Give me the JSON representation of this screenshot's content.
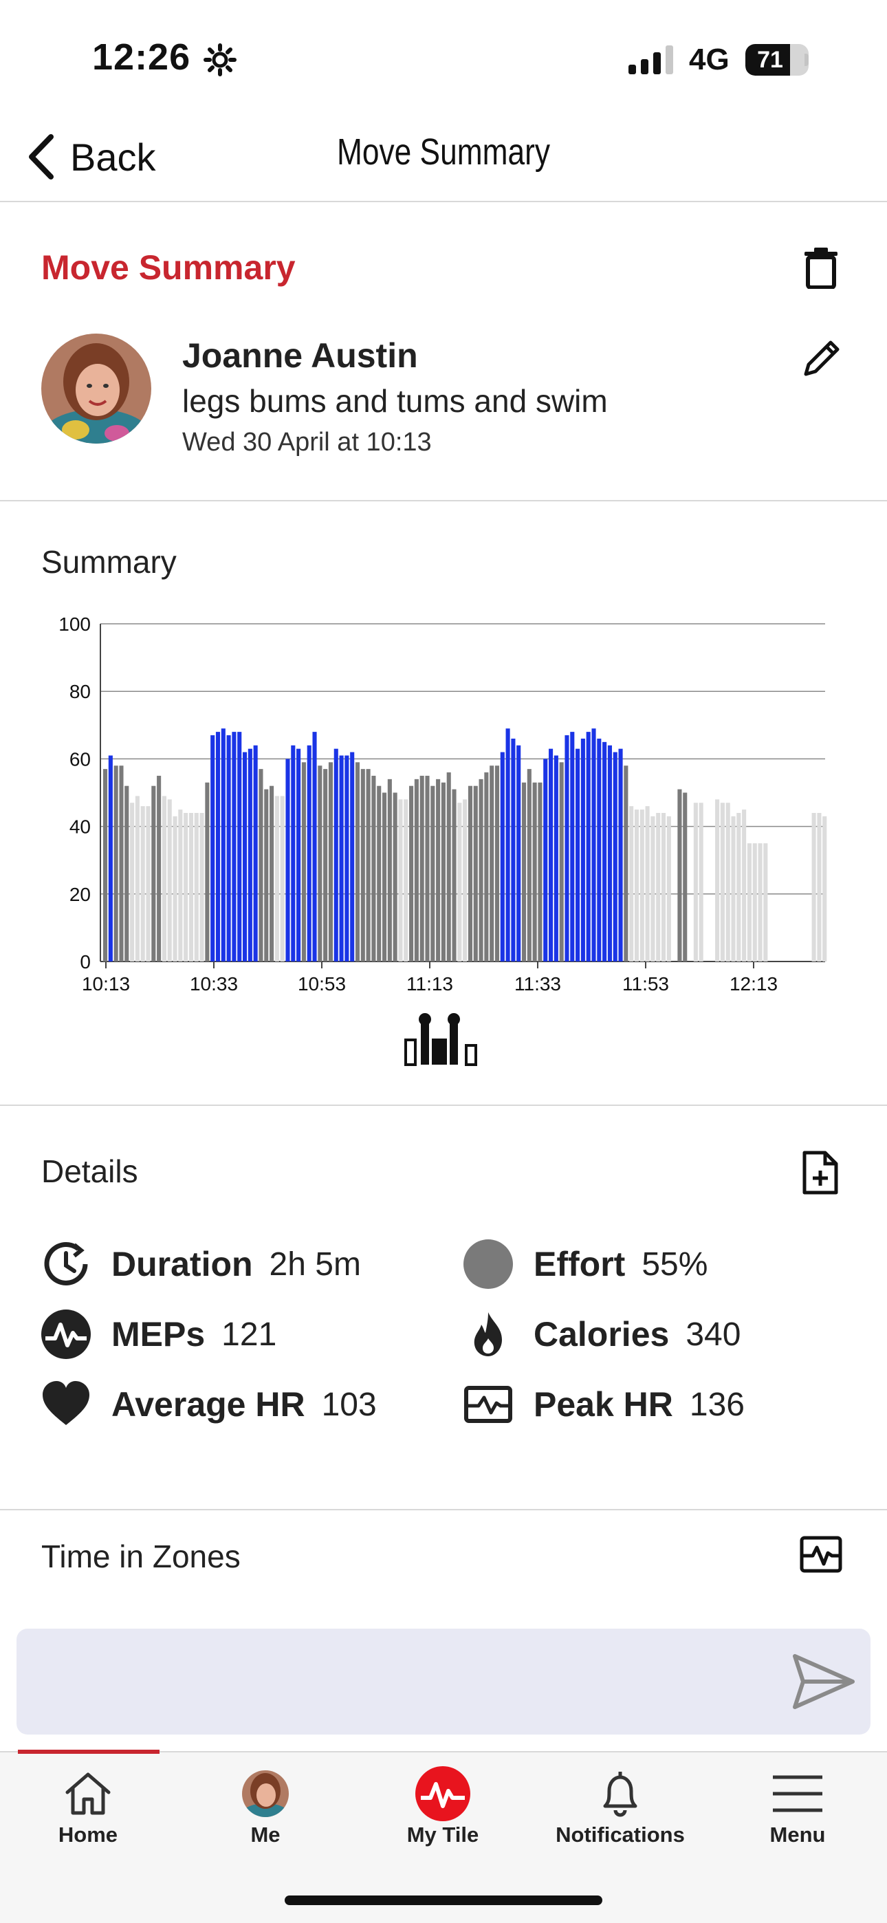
{
  "status_bar": {
    "time": "12:26",
    "network": "4G",
    "battery": "71",
    "battery_fraction": 0.71
  },
  "nav": {
    "back_label": "Back",
    "title": "Move Summary"
  },
  "header": {
    "section_title": "Move Summary",
    "user_name": "Joanne Austin",
    "activity": "legs bums and tums and swim",
    "date": "Wed 30 April at 10:13"
  },
  "summary": {
    "title": "Summary"
  },
  "chart_data": {
    "type": "bar",
    "title": "",
    "xlabel": "",
    "ylabel": "",
    "ylim": [
      0,
      100
    ],
    "y_ticks": [
      "0",
      "20",
      "40",
      "60",
      "80",
      "100"
    ],
    "x_ticks": [
      "10:13",
      "10:33",
      "10:53",
      "11:13",
      "11:33",
      "11:53",
      "12:13"
    ],
    "grid": "horizontal",
    "colors": {
      "zone_high": "#1a34e6",
      "zone_mid": "#7a7a7a",
      "zone_low": "#dcdcdc"
    },
    "bars": [
      {
        "v": 57,
        "z": "mid"
      },
      {
        "v": 61,
        "z": "high"
      },
      {
        "v": 58,
        "z": "mid"
      },
      {
        "v": 58,
        "z": "mid"
      },
      {
        "v": 52,
        "z": "mid"
      },
      {
        "v": 47,
        "z": "low"
      },
      {
        "v": 49,
        "z": "low"
      },
      {
        "v": 46,
        "z": "low"
      },
      {
        "v": 46,
        "z": "low"
      },
      {
        "v": 52,
        "z": "mid"
      },
      {
        "v": 55,
        "z": "mid"
      },
      {
        "v": 49,
        "z": "low"
      },
      {
        "v": 48,
        "z": "low"
      },
      {
        "v": 43,
        "z": "low"
      },
      {
        "v": 45,
        "z": "low"
      },
      {
        "v": 44,
        "z": "low"
      },
      {
        "v": 44,
        "z": "low"
      },
      {
        "v": 44,
        "z": "low"
      },
      {
        "v": 44,
        "z": "low"
      },
      {
        "v": 53,
        "z": "mid"
      },
      {
        "v": 67,
        "z": "high"
      },
      {
        "v": 68,
        "z": "high"
      },
      {
        "v": 69,
        "z": "high"
      },
      {
        "v": 67,
        "z": "high"
      },
      {
        "v": 68,
        "z": "high"
      },
      {
        "v": 68,
        "z": "high"
      },
      {
        "v": 62,
        "z": "high"
      },
      {
        "v": 63,
        "z": "high"
      },
      {
        "v": 64,
        "z": "high"
      },
      {
        "v": 57,
        "z": "mid"
      },
      {
        "v": 51,
        "z": "mid"
      },
      {
        "v": 52,
        "z": "mid"
      },
      {
        "v": 49,
        "z": "low"
      },
      {
        "v": 49,
        "z": "low"
      },
      {
        "v": 60,
        "z": "high"
      },
      {
        "v": 64,
        "z": "high"
      },
      {
        "v": 63,
        "z": "high"
      },
      {
        "v": 59,
        "z": "mid"
      },
      {
        "v": 64,
        "z": "high"
      },
      {
        "v": 68,
        "z": "high"
      },
      {
        "v": 58,
        "z": "mid"
      },
      {
        "v": 57,
        "z": "mid"
      },
      {
        "v": 59,
        "z": "mid"
      },
      {
        "v": 63,
        "z": "high"
      },
      {
        "v": 61,
        "z": "high"
      },
      {
        "v": 61,
        "z": "high"
      },
      {
        "v": 62,
        "z": "high"
      },
      {
        "v": 59,
        "z": "mid"
      },
      {
        "v": 57,
        "z": "mid"
      },
      {
        "v": 57,
        "z": "mid"
      },
      {
        "v": 55,
        "z": "mid"
      },
      {
        "v": 52,
        "z": "mid"
      },
      {
        "v": 50,
        "z": "mid"
      },
      {
        "v": 54,
        "z": "mid"
      },
      {
        "v": 50,
        "z": "mid"
      },
      {
        "v": 48,
        "z": "low"
      },
      {
        "v": 48,
        "z": "low"
      },
      {
        "v": 52,
        "z": "mid"
      },
      {
        "v": 54,
        "z": "mid"
      },
      {
        "v": 55,
        "z": "mid"
      },
      {
        "v": 55,
        "z": "mid"
      },
      {
        "v": 52,
        "z": "mid"
      },
      {
        "v": 54,
        "z": "mid"
      },
      {
        "v": 53,
        "z": "mid"
      },
      {
        "v": 56,
        "z": "mid"
      },
      {
        "v": 51,
        "z": "mid"
      },
      {
        "v": 47,
        "z": "low"
      },
      {
        "v": 48,
        "z": "low"
      },
      {
        "v": 52,
        "z": "mid"
      },
      {
        "v": 52,
        "z": "mid"
      },
      {
        "v": 54,
        "z": "mid"
      },
      {
        "v": 56,
        "z": "mid"
      },
      {
        "v": 58,
        "z": "mid"
      },
      {
        "v": 58,
        "z": "mid"
      },
      {
        "v": 62,
        "z": "high"
      },
      {
        "v": 69,
        "z": "high"
      },
      {
        "v": 66,
        "z": "high"
      },
      {
        "v": 64,
        "z": "high"
      },
      {
        "v": 53,
        "z": "mid"
      },
      {
        "v": 57,
        "z": "mid"
      },
      {
        "v": 53,
        "z": "mid"
      },
      {
        "v": 53,
        "z": "mid"
      },
      {
        "v": 60,
        "z": "high"
      },
      {
        "v": 63,
        "z": "high"
      },
      {
        "v": 61,
        "z": "high"
      },
      {
        "v": 59,
        "z": "mid"
      },
      {
        "v": 67,
        "z": "high"
      },
      {
        "v": 68,
        "z": "high"
      },
      {
        "v": 63,
        "z": "high"
      },
      {
        "v": 66,
        "z": "high"
      },
      {
        "v": 68,
        "z": "high"
      },
      {
        "v": 69,
        "z": "high"
      },
      {
        "v": 66,
        "z": "high"
      },
      {
        "v": 65,
        "z": "high"
      },
      {
        "v": 64,
        "z": "high"
      },
      {
        "v": 62,
        "z": "high"
      },
      {
        "v": 63,
        "z": "high"
      },
      {
        "v": 58,
        "z": "mid"
      },
      {
        "v": 46,
        "z": "low"
      },
      {
        "v": 45,
        "z": "low"
      },
      {
        "v": 45,
        "z": "low"
      },
      {
        "v": 46,
        "z": "low"
      },
      {
        "v": 43,
        "z": "low"
      },
      {
        "v": 44,
        "z": "low"
      },
      {
        "v": 44,
        "z": "low"
      },
      {
        "v": 43,
        "z": "low"
      },
      {
        "v": 0,
        "z": "low"
      },
      {
        "v": 51,
        "z": "mid"
      },
      {
        "v": 50,
        "z": "mid"
      },
      {
        "v": 0,
        "z": "low"
      },
      {
        "v": 47,
        "z": "low"
      },
      {
        "v": 47,
        "z": "low"
      },
      {
        "v": 0,
        "z": "low"
      },
      {
        "v": 0,
        "z": "low"
      },
      {
        "v": 48,
        "z": "low"
      },
      {
        "v": 47,
        "z": "low"
      },
      {
        "v": 47,
        "z": "low"
      },
      {
        "v": 43,
        "z": "low"
      },
      {
        "v": 44,
        "z": "low"
      },
      {
        "v": 45,
        "z": "low"
      },
      {
        "v": 35,
        "z": "low"
      },
      {
        "v": 35,
        "z": "low"
      },
      {
        "v": 35,
        "z": "low"
      },
      {
        "v": 35,
        "z": "low"
      },
      {
        "v": 0,
        "z": "low"
      },
      {
        "v": 0,
        "z": "low"
      },
      {
        "v": 0,
        "z": "low"
      },
      {
        "v": 0,
        "z": "low"
      },
      {
        "v": 0,
        "z": "low"
      },
      {
        "v": 0,
        "z": "low"
      },
      {
        "v": 0,
        "z": "low"
      },
      {
        "v": 0,
        "z": "low"
      },
      {
        "v": 44,
        "z": "low"
      },
      {
        "v": 44,
        "z": "low"
      },
      {
        "v": 43,
        "z": "low"
      }
    ]
  },
  "details": {
    "title": "Details",
    "metrics": [
      {
        "label": "Duration",
        "value": "2h 5m",
        "icon": "clock-icon"
      },
      {
        "label": "Effort",
        "value": "55%",
        "icon": "effort-circle-icon"
      },
      {
        "label": "MEPs",
        "value": "121",
        "icon": "meps-pulse-icon"
      },
      {
        "label": "Calories",
        "value": "340",
        "icon": "flame-icon"
      },
      {
        "label": "Average HR",
        "value": "103",
        "icon": "heart-icon"
      },
      {
        "label": "Peak HR",
        "value": "136",
        "icon": "heart-rate-monitor-icon"
      }
    ]
  },
  "zones": {
    "title": "Time in Zones"
  },
  "comment": {
    "placeholder": ""
  },
  "tabs": [
    {
      "label": "Home",
      "icon": "home-icon",
      "active": true
    },
    {
      "label": "Me",
      "icon": "avatar"
    },
    {
      "label": "My Tile",
      "icon": "my-tile-icon"
    },
    {
      "label": "Notifications",
      "icon": "bell-icon"
    },
    {
      "label": "Menu",
      "icon": "hamburger-icon"
    }
  ],
  "colors": {
    "accent_red": "#c8262f",
    "divider": "#d8d8d8",
    "comment_bg": "#e8e9f4"
  }
}
